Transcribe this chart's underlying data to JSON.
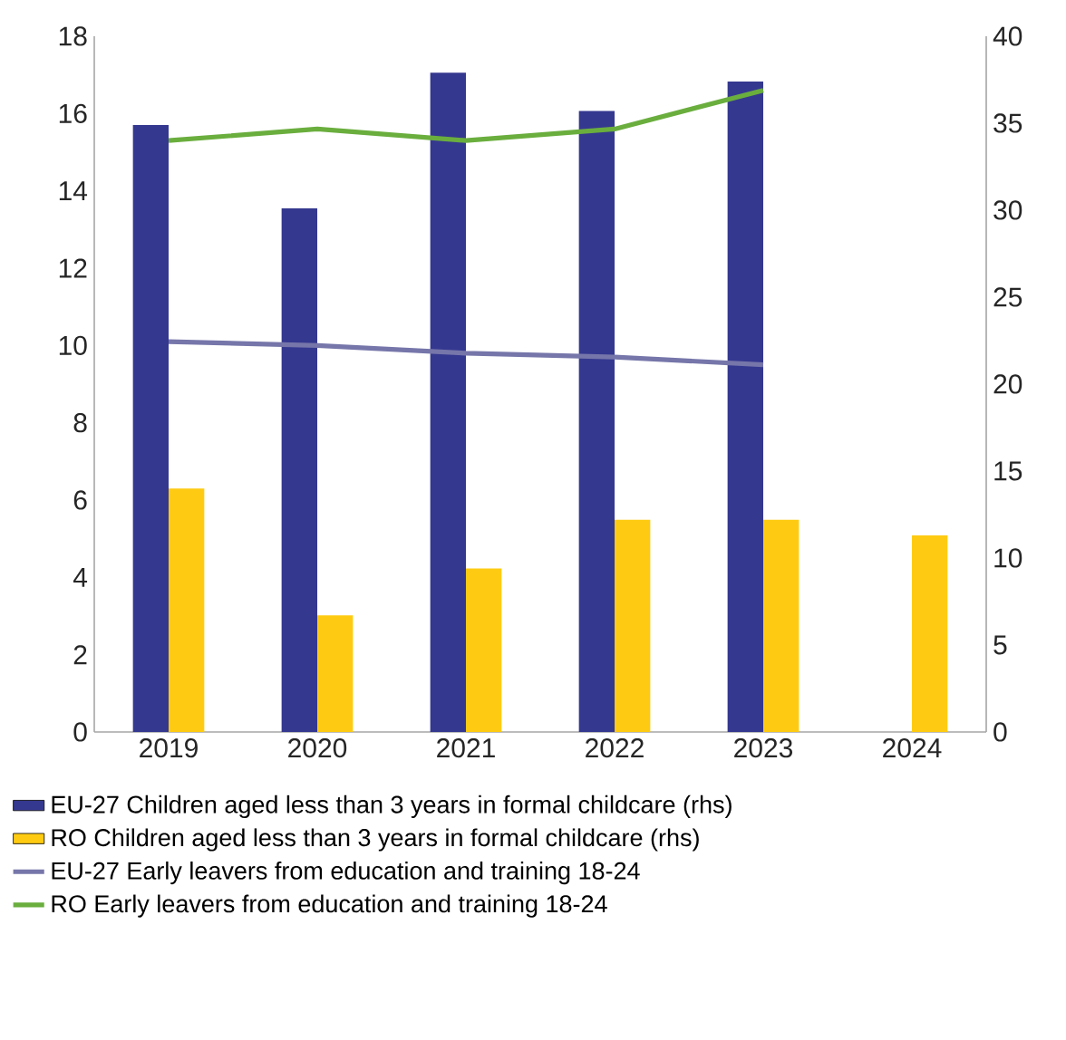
{
  "chart_data": {
    "type": "bar",
    "categories": [
      "2019",
      "2020",
      "2021",
      "2022",
      "2023",
      "2024"
    ],
    "series": [
      {
        "name": "EU-27 Children aged less than 3 years in formal childcare (rhs)",
        "color": "#35388f",
        "axis": "y2",
        "values": [
          34.9,
          30.1,
          37.9,
          35.7,
          37.4,
          null
        ]
      },
      {
        "name": "RO Children aged less than 3 years in formal childcare (rhs)",
        "color": "#fecb12",
        "axis": "y2",
        "values": [
          14.0,
          6.7,
          9.4,
          12.2,
          12.2,
          11.3
        ]
      },
      {
        "name": "EU-27 Early leavers from education and training 18-24",
        "color": "#7676aa",
        "type": "line",
        "values": [
          10.1,
          10.0,
          9.8,
          9.7,
          9.5,
          null
        ]
      },
      {
        "name": "RO Early leavers from education and training 18-24",
        "color": "#6aae3e",
        "type": "line",
        "values": [
          15.3,
          15.6,
          15.3,
          15.6,
          16.6,
          null
        ]
      }
    ],
    "ylim": [
      0,
      18
    ],
    "yticks": [
      0,
      2,
      4,
      6,
      8,
      10,
      12,
      14,
      16,
      18
    ],
    "y2lim": [
      0,
      40
    ],
    "y2ticks": [
      0,
      5,
      10,
      15,
      20,
      25,
      30,
      35,
      40
    ],
    "grid": false,
    "legend": "bottom",
    "line_style": "solid"
  }
}
